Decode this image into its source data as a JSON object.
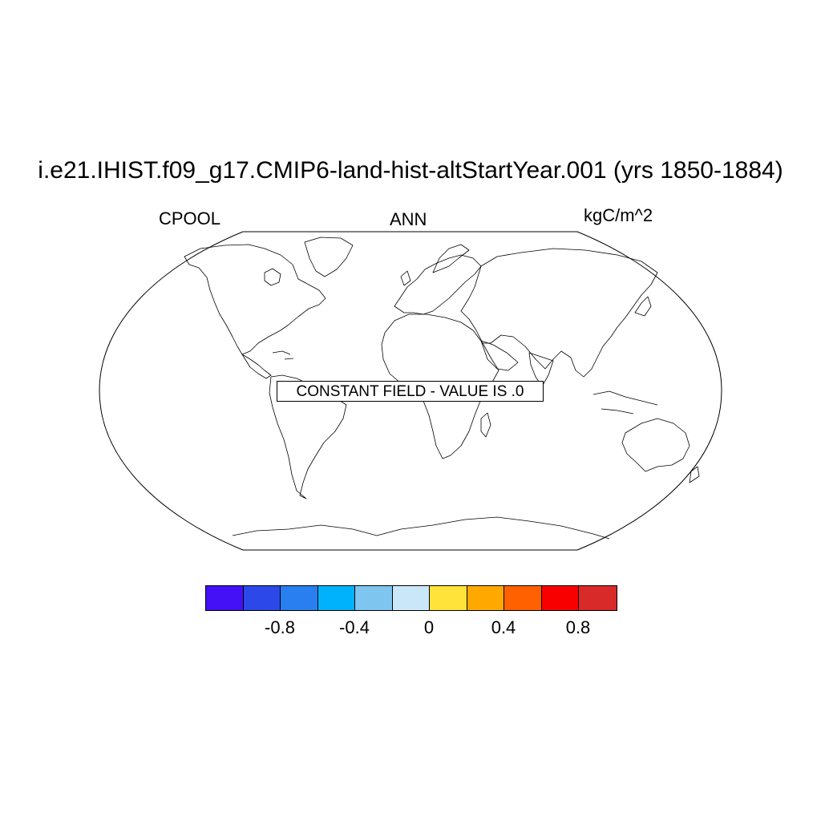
{
  "title": "i.e21.IHIST.f09_g17.CMIP6-land-hist-altStartYear.001 (yrs 1850-1884)",
  "variable": "CPOOL",
  "season": "ANN",
  "units": "kgC/m^2",
  "notice": "CONSTANT FIELD - VALUE IS .0",
  "projection": "robinson",
  "colorbar": {
    "colors": [
      "#4410f5",
      "#2c48e8",
      "#2a7ff0",
      "#00b1fb",
      "#7ec6ef",
      "#c9e7f8",
      "#ffe33a",
      "#ffa800",
      "#ff6100",
      "#f90000",
      "#d92a2a"
    ],
    "tick_labels": [
      "-0.8",
      "-0.4",
      "0",
      "0.4",
      "0.8"
    ]
  }
}
